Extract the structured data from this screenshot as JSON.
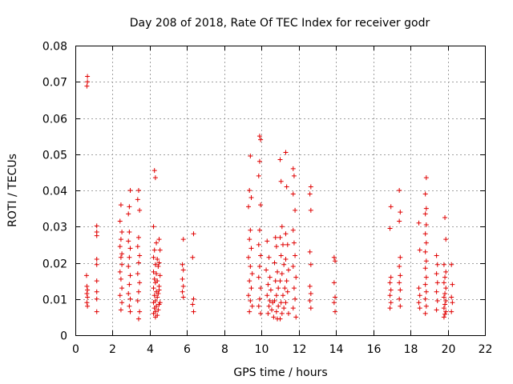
{
  "chart_data": {
    "type": "scatter",
    "title": "Day 208 of 2018, Rate Of TEC Index for receiver godr",
    "xlabel": "GPS time / hours",
    "ylabel": "ROTI / TECUs",
    "xlim": [
      0,
      22
    ],
    "ylim": [
      0,
      0.08
    ],
    "x_ticks": [
      0,
      2,
      4,
      6,
      8,
      10,
      12,
      14,
      16,
      18,
      20,
      22
    ],
    "y_ticks": [
      0,
      0.01,
      0.02,
      0.03,
      0.04,
      0.05,
      0.06,
      0.07,
      0.08
    ],
    "x_tick_labels": [
      "0",
      "2",
      "4",
      "6",
      "8",
      "10",
      "12",
      "14",
      "16",
      "18",
      "20",
      "22"
    ],
    "y_tick_labels": [
      "0",
      "0.01",
      "0.02",
      "0.03",
      "0.04",
      "0.05",
      "0.06",
      "0.07",
      "0.08"
    ],
    "grid": true,
    "marker": "+",
    "color": "#e00000",
    "series": [
      {
        "name": "ROTI",
        "points": [
          [
            0.65,
            0.0715
          ],
          [
            0.65,
            0.07
          ],
          [
            0.62,
            0.0688
          ],
          [
            0.6,
            0.0165
          ],
          [
            0.62,
            0.0135
          ],
          [
            0.65,
            0.0125
          ],
          [
            0.62,
            0.0115
          ],
          [
            0.65,
            0.0105
          ],
          [
            0.62,
            0.009
          ],
          [
            0.65,
            0.008
          ],
          [
            1.15,
            0.0302
          ],
          [
            1.15,
            0.0285
          ],
          [
            1.15,
            0.0275
          ],
          [
            1.15,
            0.021
          ],
          [
            1.15,
            0.0195
          ],
          [
            1.15,
            0.015
          ],
          [
            1.15,
            0.012
          ],
          [
            1.15,
            0.01
          ],
          [
            1.15,
            0.0065
          ],
          [
            2.45,
            0.036
          ],
          [
            2.4,
            0.0315
          ],
          [
            2.5,
            0.0285
          ],
          [
            2.45,
            0.0265
          ],
          [
            2.4,
            0.0245
          ],
          [
            2.5,
            0.0225
          ],
          [
            2.45,
            0.0215
          ],
          [
            2.5,
            0.0195
          ],
          [
            2.4,
            0.0175
          ],
          [
            2.45,
            0.0155
          ],
          [
            2.5,
            0.013
          ],
          [
            2.4,
            0.011
          ],
          [
            2.5,
            0.009
          ],
          [
            2.45,
            0.007
          ],
          [
            2.9,
            0.0355
          ],
          [
            2.85,
            0.0335
          ],
          [
            2.95,
            0.04
          ],
          [
            2.9,
            0.0285
          ],
          [
            2.85,
            0.026
          ],
          [
            2.95,
            0.024
          ],
          [
            2.9,
            0.0215
          ],
          [
            2.85,
            0.019
          ],
          [
            2.95,
            0.0165
          ],
          [
            2.9,
            0.014
          ],
          [
            2.85,
            0.0115
          ],
          [
            2.95,
            0.01
          ],
          [
            2.9,
            0.008
          ],
          [
            2.95,
            0.0065
          ],
          [
            3.4,
            0.04
          ],
          [
            3.35,
            0.0375
          ],
          [
            3.45,
            0.0345
          ],
          [
            3.4,
            0.027
          ],
          [
            3.35,
            0.0245
          ],
          [
            3.45,
            0.022
          ],
          [
            3.4,
            0.02
          ],
          [
            3.35,
            0.017
          ],
          [
            3.45,
            0.0145
          ],
          [
            3.4,
            0.012
          ],
          [
            3.35,
            0.0095
          ],
          [
            3.45,
            0.0065
          ],
          [
            3.4,
            0.0045
          ],
          [
            4.25,
            0.0455
          ],
          [
            4.3,
            0.0435
          ],
          [
            4.2,
            0.03
          ],
          [
            4.35,
            0.0255
          ],
          [
            4.25,
            0.0235
          ],
          [
            4.2,
            0.0215
          ],
          [
            4.4,
            0.021
          ],
          [
            4.3,
            0.0195
          ],
          [
            4.45,
            0.019
          ],
          [
            4.2,
            0.0175
          ],
          [
            4.35,
            0.017
          ],
          [
            4.25,
            0.0155
          ],
          [
            4.4,
            0.015
          ],
          [
            4.3,
            0.0145
          ],
          [
            4.5,
            0.0135
          ],
          [
            4.2,
            0.013
          ],
          [
            4.35,
            0.012
          ],
          [
            4.45,
            0.0115
          ],
          [
            4.25,
            0.011
          ],
          [
            4.4,
            0.0105
          ],
          [
            4.3,
            0.0095
          ],
          [
            4.2,
            0.009
          ],
          [
            4.5,
            0.0085
          ],
          [
            4.35,
            0.008
          ],
          [
            4.25,
            0.0075
          ],
          [
            4.45,
            0.007
          ],
          [
            4.3,
            0.0065
          ],
          [
            4.2,
            0.006
          ],
          [
            4.4,
            0.0055
          ],
          [
            4.3,
            0.005
          ],
          [
            4.5,
            0.0265
          ],
          [
            4.55,
            0.0235
          ],
          [
            4.5,
            0.02
          ],
          [
            4.55,
            0.0165
          ],
          [
            4.5,
            0.0125
          ],
          [
            4.55,
            0.009
          ],
          [
            5.8,
            0.0265
          ],
          [
            5.75,
            0.0195
          ],
          [
            5.8,
            0.018
          ],
          [
            5.75,
            0.0155
          ],
          [
            5.8,
            0.0135
          ],
          [
            5.75,
            0.012
          ],
          [
            5.8,
            0.0105
          ],
          [
            6.35,
            0.028
          ],
          [
            6.3,
            0.0215
          ],
          [
            6.35,
            0.01
          ],
          [
            6.3,
            0.0085
          ],
          [
            6.35,
            0.0065
          ],
          [
            9.4,
            0.0495
          ],
          [
            9.35,
            0.04
          ],
          [
            9.45,
            0.038
          ],
          [
            9.3,
            0.0355
          ],
          [
            9.4,
            0.029
          ],
          [
            9.35,
            0.0265
          ],
          [
            9.45,
            0.024
          ],
          [
            9.3,
            0.0215
          ],
          [
            9.4,
            0.019
          ],
          [
            9.5,
            0.017
          ],
          [
            9.35,
            0.015
          ],
          [
            9.45,
            0.013
          ],
          [
            9.3,
            0.011
          ],
          [
            9.4,
            0.0095
          ],
          [
            9.5,
            0.008
          ],
          [
            9.35,
            0.0065
          ],
          [
            9.9,
            0.055
          ],
          [
            9.95,
            0.054
          ],
          [
            9.9,
            0.048
          ],
          [
            9.85,
            0.044
          ],
          [
            9.95,
            0.036
          ],
          [
            9.9,
            0.029
          ],
          [
            9.85,
            0.025
          ],
          [
            9.95,
            0.022
          ],
          [
            9.9,
            0.019
          ],
          [
            9.85,
            0.016
          ],
          [
            9.95,
            0.013
          ],
          [
            9.9,
            0.01
          ],
          [
            9.85,
            0.008
          ],
          [
            9.95,
            0.006
          ],
          [
            10.3,
            0.026
          ],
          [
            10.4,
            0.0215
          ],
          [
            10.25,
            0.018
          ],
          [
            10.45,
            0.016
          ],
          [
            10.35,
            0.014
          ],
          [
            10.5,
            0.0125
          ],
          [
            10.3,
            0.011
          ],
          [
            10.45,
            0.0095
          ],
          [
            10.6,
            0.009
          ],
          [
            10.4,
            0.008
          ],
          [
            10.55,
            0.007
          ],
          [
            10.35,
            0.006
          ],
          [
            10.65,
            0.005
          ],
          [
            10.75,
            0.027
          ],
          [
            10.8,
            0.0245
          ],
          [
            10.7,
            0.02
          ],
          [
            10.85,
            0.0175
          ],
          [
            10.75,
            0.015
          ],
          [
            10.9,
            0.013
          ],
          [
            10.8,
            0.011
          ],
          [
            10.7,
            0.0095
          ],
          [
            10.9,
            0.008
          ],
          [
            10.8,
            0.0065
          ],
          [
            10.85,
            0.0045
          ],
          [
            11.0,
            0.0485
          ],
          [
            11.05,
            0.0425
          ],
          [
            11.1,
            0.03
          ],
          [
            11.0,
            0.027
          ],
          [
            11.15,
            0.025
          ],
          [
            11.05,
            0.022
          ],
          [
            11.2,
            0.0195
          ],
          [
            11.1,
            0.017
          ],
          [
            11.0,
            0.015
          ],
          [
            11.25,
            0.013
          ],
          [
            11.15,
            0.011
          ],
          [
            11.05,
            0.009
          ],
          [
            11.2,
            0.0075
          ],
          [
            11.1,
            0.006
          ],
          [
            11.0,
            0.0045
          ],
          [
            11.3,
            0.0505
          ],
          [
            11.35,
            0.041
          ],
          [
            11.3,
            0.028
          ],
          [
            11.4,
            0.025
          ],
          [
            11.3,
            0.021
          ],
          [
            11.45,
            0.018
          ],
          [
            11.35,
            0.015
          ],
          [
            11.4,
            0.012
          ],
          [
            11.3,
            0.009
          ],
          [
            11.45,
            0.006
          ],
          [
            11.7,
            0.046
          ],
          [
            11.75,
            0.044
          ],
          [
            11.7,
            0.039
          ],
          [
            11.8,
            0.0345
          ],
          [
            11.7,
            0.029
          ],
          [
            11.75,
            0.0255
          ],
          [
            11.8,
            0.022
          ],
          [
            11.7,
            0.019
          ],
          [
            11.85,
            0.016
          ],
          [
            11.75,
            0.013
          ],
          [
            11.8,
            0.01
          ],
          [
            11.7,
            0.0075
          ],
          [
            11.85,
            0.005
          ],
          [
            12.65,
            0.041
          ],
          [
            12.6,
            0.039
          ],
          [
            12.65,
            0.0345
          ],
          [
            12.6,
            0.023
          ],
          [
            12.65,
            0.0195
          ],
          [
            12.6,
            0.0135
          ],
          [
            12.65,
            0.0115
          ],
          [
            12.6,
            0.0095
          ],
          [
            12.65,
            0.0075
          ],
          [
            13.9,
            0.0215
          ],
          [
            13.95,
            0.0205
          ],
          [
            13.9,
            0.0145
          ],
          [
            13.95,
            0.0105
          ],
          [
            13.9,
            0.009
          ],
          [
            13.95,
            0.0065
          ],
          [
            16.95,
            0.0355
          ],
          [
            16.9,
            0.0295
          ],
          [
            16.95,
            0.016
          ],
          [
            16.9,
            0.0145
          ],
          [
            16.95,
            0.0125
          ],
          [
            16.9,
            0.011
          ],
          [
            16.95,
            0.009
          ],
          [
            16.9,
            0.0075
          ],
          [
            17.4,
            0.04
          ],
          [
            17.45,
            0.034
          ],
          [
            17.4,
            0.0315
          ],
          [
            17.45,
            0.0215
          ],
          [
            17.4,
            0.019
          ],
          [
            17.45,
            0.0165
          ],
          [
            17.4,
            0.0145
          ],
          [
            17.45,
            0.0125
          ],
          [
            17.4,
            0.01
          ],
          [
            17.45,
            0.008
          ],
          [
            18.45,
            0.031
          ],
          [
            18.5,
            0.0235
          ],
          [
            18.45,
            0.013
          ],
          [
            18.5,
            0.011
          ],
          [
            18.45,
            0.009
          ],
          [
            18.5,
            0.0075
          ],
          [
            18.85,
            0.0435
          ],
          [
            18.8,
            0.039
          ],
          [
            18.85,
            0.035
          ],
          [
            18.8,
            0.0335
          ],
          [
            18.85,
            0.0305
          ],
          [
            18.8,
            0.028
          ],
          [
            18.85,
            0.0255
          ],
          [
            18.8,
            0.023
          ],
          [
            18.85,
            0.0205
          ],
          [
            18.8,
            0.0185
          ],
          [
            18.85,
            0.016
          ],
          [
            18.8,
            0.014
          ],
          [
            18.85,
            0.012
          ],
          [
            18.8,
            0.01
          ],
          [
            18.85,
            0.008
          ],
          [
            18.8,
            0.006
          ],
          [
            19.4,
            0.022
          ],
          [
            19.45,
            0.0195
          ],
          [
            19.4,
            0.017
          ],
          [
            19.45,
            0.0145
          ],
          [
            19.4,
            0.012
          ],
          [
            19.45,
            0.0095
          ],
          [
            19.4,
            0.007
          ],
          [
            19.85,
            0.0325
          ],
          [
            19.9,
            0.0265
          ],
          [
            19.8,
            0.0195
          ],
          [
            19.9,
            0.0175
          ],
          [
            19.85,
            0.016
          ],
          [
            19.8,
            0.0145
          ],
          [
            19.9,
            0.013
          ],
          [
            19.85,
            0.0115
          ],
          [
            19.8,
            0.0105
          ],
          [
            19.9,
            0.0095
          ],
          [
            19.85,
            0.0085
          ],
          [
            19.8,
            0.0075
          ],
          [
            19.9,
            0.0065
          ],
          [
            19.85,
            0.0058
          ],
          [
            19.8,
            0.005
          ],
          [
            20.2,
            0.0195
          ],
          [
            20.25,
            0.014
          ],
          [
            20.2,
            0.0105
          ],
          [
            20.25,
            0.009
          ],
          [
            20.2,
            0.0065
          ]
        ]
      }
    ]
  }
}
